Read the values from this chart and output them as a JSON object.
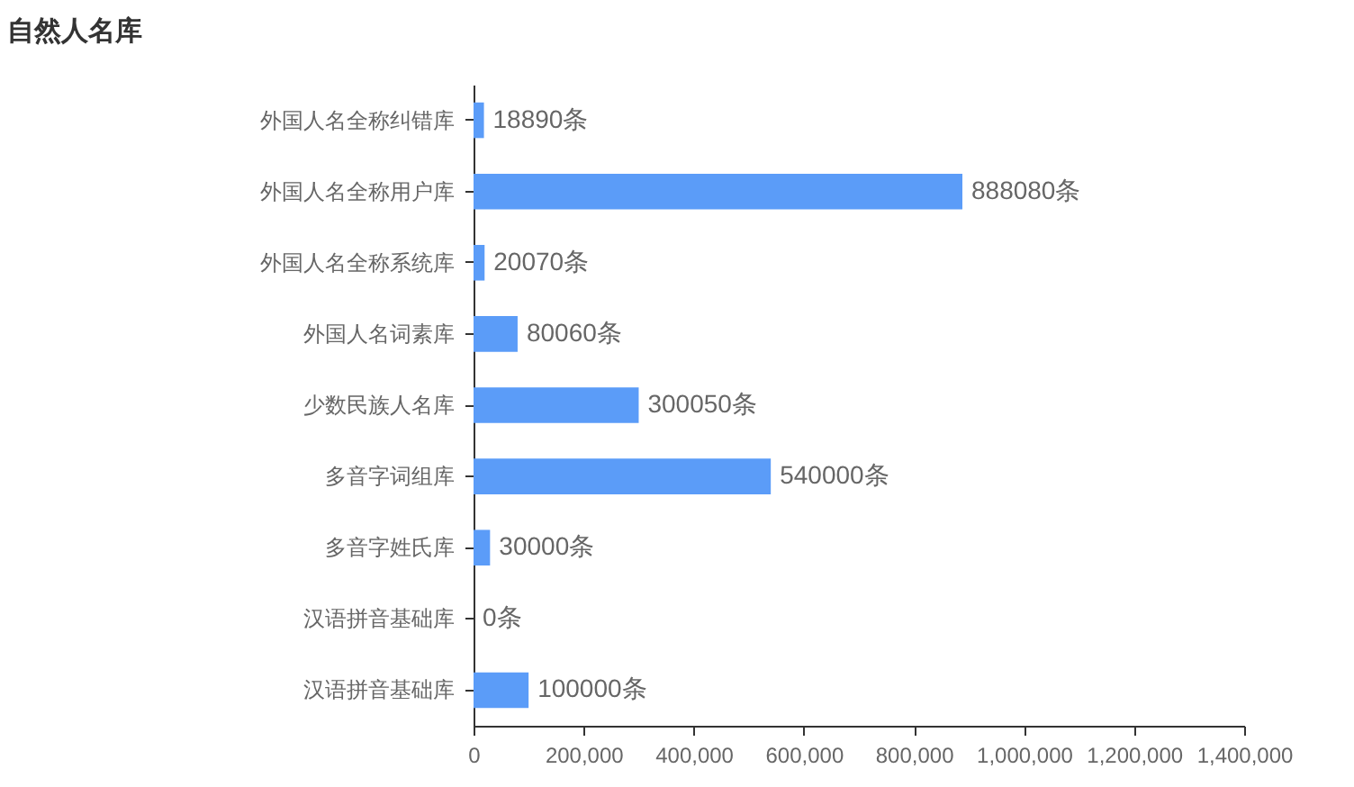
{
  "chart_data": {
    "type": "bar",
    "orientation": "horizontal",
    "title": "自然人名库",
    "categories": [
      "外国人名全称纠错库",
      "外国人名全称用户库",
      "外国人名全称系统库",
      "外国人名词素库",
      "少数民族人名库",
      "多音字词组库",
      "多音字姓氏库",
      "汉语拼音基础库",
      "汉语拼音基础库"
    ],
    "values": [
      18890,
      888080,
      20070,
      80060,
      300050,
      540000,
      30000,
      0,
      100000
    ],
    "value_labels": [
      "18890条",
      "888080条",
      "20070条",
      "80060条",
      "300050条",
      "540000条",
      "30000条",
      "0条",
      "100000条"
    ],
    "color": "#5b9cf8",
    "xlim": [
      0,
      1400000
    ],
    "xticks": [
      0,
      {
        "value": 200000,
        "label": "200,000"
      },
      {
        "value": 400000,
        "label": "400,000"
      },
      {
        "value": 600000,
        "label": "600,000"
      },
      {
        "value": 800000,
        "label": "800,000"
      },
      {
        "value": 1000000,
        "label": "1,000,000"
      },
      {
        "value": 1200000,
        "label": "1,200,000"
      },
      {
        "value": 1400000,
        "label": "1,400,000"
      }
    ],
    "grid": false
  }
}
